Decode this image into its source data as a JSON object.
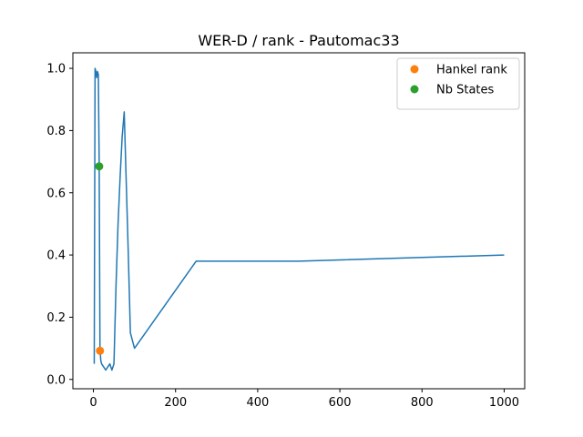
{
  "chart_data": {
    "type": "line",
    "title": "WER-D / rank - Pautomac33",
    "xlabel": "",
    "ylabel": "",
    "xlim": [
      -50,
      1050
    ],
    "ylim": [
      -0.03,
      1.05
    ],
    "x_ticks": [
      0,
      200,
      400,
      600,
      800,
      1000
    ],
    "y_ticks": [
      0.0,
      0.2,
      0.4,
      0.6,
      0.8,
      1.0
    ],
    "x_tick_labels": [
      "0",
      "200",
      "400",
      "600",
      "800",
      "1000"
    ],
    "y_tick_labels": [
      "0.0",
      "0.2",
      "0.4",
      "0.6",
      "0.8",
      "1.0"
    ],
    "grid": false,
    "legend_position": "upper right",
    "series": [
      {
        "name": "",
        "kind": "line",
        "color": "#1f77b4",
        "x": [
          2,
          4,
          6,
          8,
          10,
          12,
          14,
          16,
          18,
          20,
          25,
          30,
          35,
          40,
          45,
          50,
          55,
          60,
          65,
          70,
          75,
          80,
          85,
          90,
          100,
          250,
          500,
          1000
        ],
        "y": [
          0.05,
          1.0,
          0.99,
          0.97,
          0.99,
          0.98,
          0.7,
          0.1,
          0.06,
          0.05,
          0.04,
          0.03,
          0.04,
          0.05,
          0.03,
          0.05,
          0.3,
          0.5,
          0.65,
          0.78,
          0.86,
          0.63,
          0.4,
          0.15,
          0.1,
          0.38,
          0.38,
          0.4
        ]
      },
      {
        "name": "Hankel rank",
        "kind": "points",
        "color": "#ff7f0e",
        "x": [
          16
        ],
        "y": [
          0.092
        ]
      },
      {
        "name": "Nb States",
        "kind": "points",
        "color": "#2ca02c",
        "x": [
          14
        ],
        "y": [
          0.685
        ]
      }
    ],
    "legend": [
      "Hankel rank",
      "Nb States"
    ]
  }
}
